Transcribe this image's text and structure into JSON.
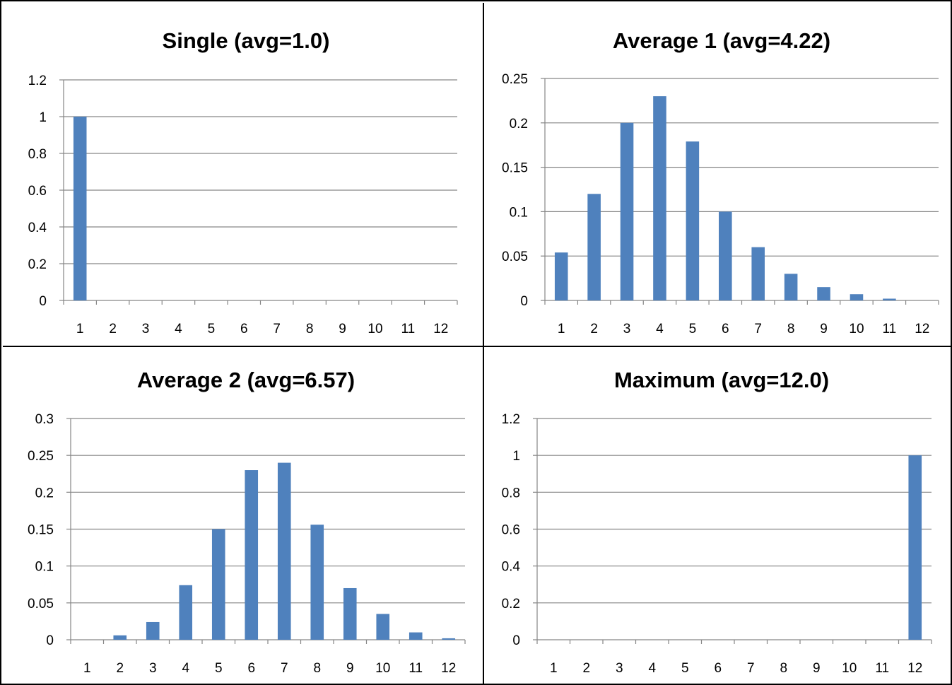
{
  "colors": {
    "bar": "#4F81BD",
    "grid": "#868686",
    "axis": "#868686",
    "border": "#000000"
  },
  "chart_data": [
    {
      "type": "bar",
      "title": "Single (avg=1.0)",
      "categories": [
        "1",
        "2",
        "3",
        "4",
        "5",
        "6",
        "7",
        "8",
        "9",
        "10",
        "11",
        "12"
      ],
      "values": [
        1,
        0,
        0,
        0,
        0,
        0,
        0,
        0,
        0,
        0,
        0,
        0
      ],
      "ylim": [
        0,
        1.2
      ],
      "yticks": [
        "0",
        "0.2",
        "0.4",
        "0.6",
        "0.8",
        "1",
        "1.2"
      ],
      "grid": true,
      "legend": "none"
    },
    {
      "type": "bar",
      "title": "Average 1 (avg=4.22)",
      "categories": [
        "1",
        "2",
        "3",
        "4",
        "5",
        "6",
        "7",
        "8",
        "9",
        "10",
        "11",
        "12"
      ],
      "values": [
        0.054,
        0.12,
        0.2,
        0.23,
        0.179,
        0.1,
        0.06,
        0.03,
        0.015,
        0.007,
        0.002,
        0
      ],
      "ylim": [
        0,
        0.25
      ],
      "yticks": [
        "0",
        "0.05",
        "0.1",
        "0.15",
        "0.2",
        "0.25"
      ],
      "grid": true,
      "legend": "none"
    },
    {
      "type": "bar",
      "title": "Average 2 (avg=6.57)",
      "categories": [
        "1",
        "2",
        "3",
        "4",
        "5",
        "6",
        "7",
        "8",
        "9",
        "10",
        "11",
        "12"
      ],
      "values": [
        0,
        0.006,
        0.024,
        0.074,
        0.15,
        0.23,
        0.24,
        0.156,
        0.07,
        0.035,
        0.01,
        0.002
      ],
      "ylim": [
        0,
        0.3
      ],
      "yticks": [
        "0",
        "0.05",
        "0.1",
        "0.15",
        "0.2",
        "0.25",
        "0.3"
      ],
      "grid": true,
      "legend": "none"
    },
    {
      "type": "bar",
      "title": "Maximum (avg=12.0)",
      "categories": [
        "1",
        "2",
        "3",
        "4",
        "5",
        "6",
        "7",
        "8",
        "9",
        "10",
        "11",
        "12"
      ],
      "values": [
        0,
        0,
        0,
        0,
        0,
        0,
        0,
        0,
        0,
        0,
        0,
        1
      ],
      "ylim": [
        0,
        1.2
      ],
      "yticks": [
        "0",
        "0.2",
        "0.4",
        "0.6",
        "0.8",
        "1",
        "1.2"
      ],
      "grid": true,
      "legend": "none"
    }
  ]
}
